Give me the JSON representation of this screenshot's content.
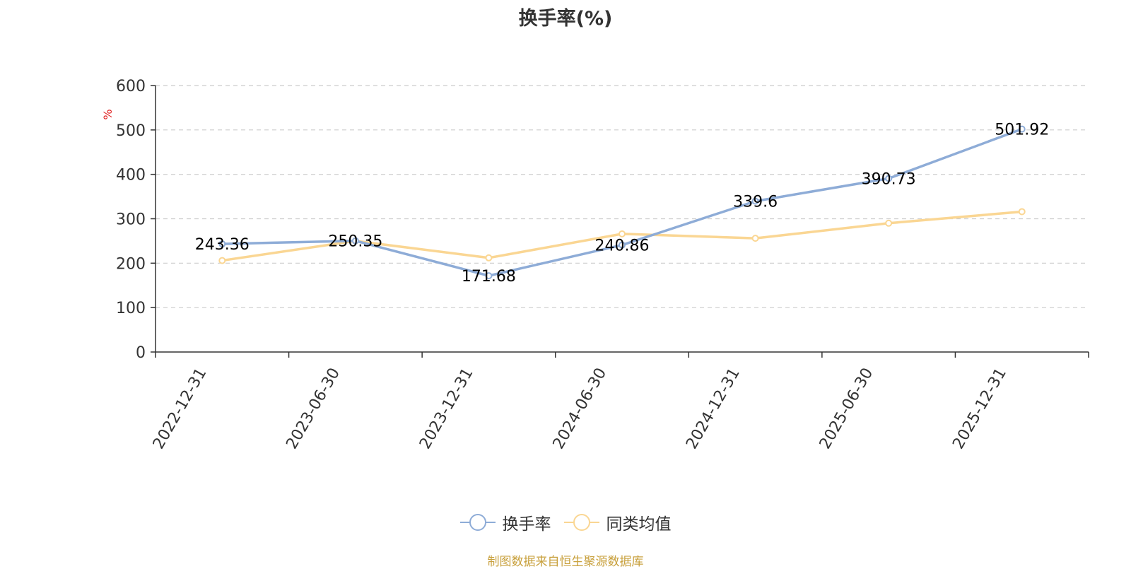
{
  "chart_data": {
    "type": "line",
    "title": "换手率(%)",
    "ylabel": "%",
    "categories": [
      "2022-12-31",
      "2023-06-30",
      "2023-12-31",
      "2024-06-30",
      "2024-12-31",
      "2025-06-30",
      "2025-12-31"
    ],
    "ylim": [
      0,
      600
    ],
    "yticks": [
      0,
      100,
      200,
      300,
      400,
      500,
      600
    ],
    "grid": true,
    "legend_position": "bottom",
    "series": [
      {
        "name": "换手率",
        "color": "#8eacd7",
        "values": [
          243.36,
          250.35,
          171.68,
          240.86,
          339.6,
          390.73,
          501.92
        ],
        "data_labels": [
          "243.36",
          "250.35",
          "171.68",
          "240.86",
          "339.6",
          "390.73",
          "501.92"
        ]
      },
      {
        "name": "同类均值",
        "color": "#fad693",
        "values": [
          206,
          250,
          212,
          266,
          256,
          290,
          316
        ]
      }
    ]
  },
  "source_note": "制图数据来自恒生聚源数据库"
}
